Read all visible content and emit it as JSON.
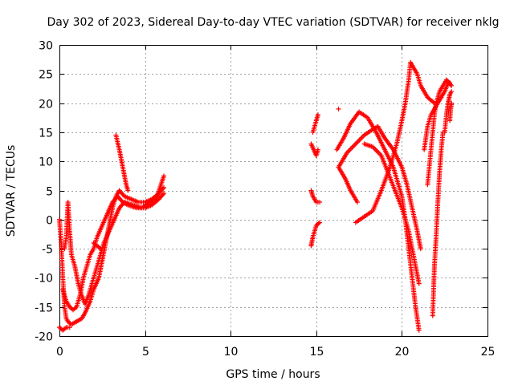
{
  "chart_data": {
    "type": "scatter",
    "title": "Day 302 of 2023, Sidereal Day-to-day VTEC variation (SDTVAR) for receiver nklg",
    "xlabel": "GPS time / hours",
    "ylabel": "SDTVAR / TECUs",
    "xlim": [
      0,
      25
    ],
    "ylim": [
      -20,
      30
    ],
    "xticks": [
      0,
      5,
      10,
      15,
      20,
      25
    ],
    "yticks": [
      -20,
      -15,
      -10,
      -5,
      0,
      5,
      10,
      15,
      20,
      25,
      30
    ],
    "grid": true,
    "marker": "plus",
    "color": "#ff0000",
    "series": [
      {
        "segments": [
          [
            [
              0.0,
              0
            ],
            [
              0.1,
              -4
            ],
            [
              0.2,
              -10
            ],
            [
              0.3,
              -15
            ],
            [
              0.4,
              -17
            ],
            [
              0.5,
              -17.5
            ],
            [
              0.7,
              -18
            ],
            [
              1.0,
              -17.5
            ],
            [
              1.3,
              -17
            ],
            [
              1.5,
              -16
            ],
            [
              1.8,
              -14
            ],
            [
              2.0,
              -12
            ],
            [
              2.3,
              -10
            ],
            [
              2.5,
              -7
            ],
            [
              2.7,
              -4
            ],
            [
              2.9,
              -1
            ],
            [
              3.1,
              2
            ],
            [
              3.3,
              4
            ],
            [
              3.5,
              5
            ],
            [
              3.8,
              4
            ],
            [
              4.2,
              3.5
            ],
            [
              4.6,
              3
            ],
            [
              5.0,
              3
            ],
            [
              5.4,
              3.5
            ],
            [
              5.8,
              4.5
            ],
            [
              6.1,
              5.5
            ]
          ],
          [
            [
              0.2,
              -12
            ],
            [
              0.4,
              -14
            ],
            [
              0.6,
              -15
            ],
            [
              0.8,
              -15.5
            ],
            [
              1.0,
              -15
            ],
            [
              1.2,
              -13
            ],
            [
              1.4,
              -10
            ],
            [
              1.6,
              -8
            ],
            [
              1.8,
              -6
            ],
            [
              2.0,
              -5
            ],
            [
              2.2,
              -3
            ],
            [
              2.5,
              -1
            ],
            [
              2.8,
              1
            ],
            [
              3.1,
              3
            ],
            [
              3.4,
              4
            ],
            [
              3.7,
              3
            ],
            [
              4.0,
              2.5
            ],
            [
              4.5,
              2
            ],
            [
              5.0,
              2
            ],
            [
              5.4,
              2.5
            ],
            [
              5.8,
              3.5
            ],
            [
              6.1,
              4.5
            ]
          ],
          [
            [
              0.3,
              -5
            ],
            [
              0.4,
              -3
            ],
            [
              0.5,
              3
            ],
            [
              0.6,
              -2
            ],
            [
              0.7,
              -6
            ],
            [
              0.9,
              -8
            ],
            [
              1.1,
              -11
            ],
            [
              1.3,
              -13
            ],
            [
              1.5,
              -14.5
            ],
            [
              1.7,
              -13
            ],
            [
              1.9,
              -11
            ],
            [
              2.1,
              -9
            ],
            [
              2.3,
              -7
            ],
            [
              2.6,
              -4
            ],
            [
              2.9,
              -2
            ],
            [
              3.2,
              0
            ],
            [
              3.5,
              2
            ],
            [
              3.8,
              3
            ],
            [
              4.3,
              2.5
            ],
            [
              4.8,
              2
            ],
            [
              5.3,
              3
            ],
            [
              5.7,
              4
            ],
            [
              6.1,
              7.5
            ]
          ],
          [
            [
              0.0,
              -18.5
            ],
            [
              0.2,
              -19
            ],
            [
              0.4,
              -18.5
            ],
            [
              0.6,
              -18.5
            ]
          ],
          [
            [
              3.3,
              14.5
            ],
            [
              3.5,
              12
            ],
            [
              3.7,
              9
            ],
            [
              3.9,
              6
            ],
            [
              4.0,
              5
            ]
          ],
          [
            [
              2.0,
              -4
            ],
            [
              2.2,
              -4.5
            ],
            [
              2.4,
              -5
            ]
          ],
          [
            [
              14.7,
              -4.5
            ],
            [
              14.8,
              -3
            ],
            [
              15.0,
              -1
            ],
            [
              15.2,
              -0.5
            ]
          ],
          [
            [
              14.8,
              15
            ],
            [
              15.0,
              17
            ],
            [
              15.1,
              18
            ]
          ],
          [
            [
              14.7,
              5
            ],
            [
              14.8,
              4
            ],
            [
              15.0,
              3
            ],
            [
              15.2,
              3
            ]
          ],
          [
            [
              14.7,
              13
            ],
            [
              15.0,
              11
            ],
            [
              15.1,
              12
            ]
          ],
          [
            [
              16.3,
              19
            ]
          ],
          [
            [
              16.2,
              12
            ],
            [
              16.6,
              14
            ],
            [
              17.0,
              16.5
            ],
            [
              17.5,
              18.5
            ],
            [
              18.0,
              17.5
            ],
            [
              18.5,
              15
            ],
            [
              19.0,
              12
            ],
            [
              19.5,
              9
            ],
            [
              20.0,
              4
            ],
            [
              20.2,
              0
            ],
            [
              20.4,
              -5
            ],
            [
              20.6,
              -10
            ],
            [
              20.8,
              -15
            ],
            [
              21.0,
              -19
            ]
          ],
          [
            [
              17.3,
              -0.5
            ],
            [
              17.8,
              0.5
            ],
            [
              18.3,
              1.5
            ],
            [
              18.8,
              5
            ],
            [
              19.3,
              9
            ],
            [
              19.7,
              13
            ],
            [
              20.0,
              17
            ],
            [
              20.2,
              20
            ],
            [
              20.4,
              24
            ],
            [
              20.5,
              27
            ],
            [
              20.7,
              26
            ],
            [
              20.9,
              25
            ],
            [
              21.1,
              23
            ],
            [
              21.5,
              21
            ],
            [
              21.9,
              20
            ]
          ],
          [
            [
              16.3,
              9
            ],
            [
              16.7,
              7
            ],
            [
              17.0,
              5
            ],
            [
              17.4,
              3
            ]
          ],
          [
            [
              16.3,
              9
            ],
            [
              16.8,
              11.5
            ],
            [
              17.3,
              13
            ],
            [
              17.8,
              14.5
            ],
            [
              18.3,
              15.5
            ],
            [
              18.6,
              16
            ],
            [
              19.0,
              14
            ],
            [
              19.5,
              12
            ],
            [
              20.0,
              9
            ],
            [
              20.3,
              6
            ],
            [
              20.6,
              2
            ],
            [
              20.9,
              -2
            ],
            [
              21.1,
              -5
            ]
          ],
          [
            [
              17.8,
              13
            ],
            [
              18.3,
              12.5
            ],
            [
              18.8,
              11
            ],
            [
              19.2,
              8
            ],
            [
              19.6,
              5
            ],
            [
              20.0,
              2
            ],
            [
              20.4,
              -2
            ],
            [
              20.8,
              -8
            ],
            [
              21.0,
              -11
            ]
          ],
          [
            [
              21.8,
              -16.5
            ],
            [
              21.9,
              -8
            ],
            [
              22.0,
              -3
            ],
            [
              22.1,
              3
            ],
            [
              22.2,
              8
            ],
            [
              22.3,
              12
            ],
            [
              22.4,
              15
            ]
          ],
          [
            [
              21.3,
              12
            ],
            [
              21.5,
              16
            ],
            [
              21.7,
              18
            ],
            [
              21.9,
              19
            ],
            [
              22.1,
              20
            ],
            [
              22.3,
              21
            ],
            [
              22.5,
              22
            ],
            [
              22.7,
              23.5
            ],
            [
              22.9,
              23
            ]
          ],
          [
            [
              21.5,
              6
            ],
            [
              21.6,
              9
            ],
            [
              21.7,
              12
            ],
            [
              21.8,
              15
            ],
            [
              21.9,
              18
            ],
            [
              22.0,
              20
            ],
            [
              22.2,
              22
            ],
            [
              22.4,
              23
            ],
            [
              22.6,
              24
            ],
            [
              22.8,
              23.5
            ]
          ],
          [
            [
              22.5,
              15
            ],
            [
              22.6,
              18
            ],
            [
              22.7,
              20
            ],
            [
              22.8,
              21.5
            ],
            [
              22.9,
              22
            ]
          ],
          [
            [
              22.8,
              17
            ],
            [
              22.85,
              19
            ],
            [
              22.9,
              20
            ]
          ]
        ]
      }
    ]
  }
}
